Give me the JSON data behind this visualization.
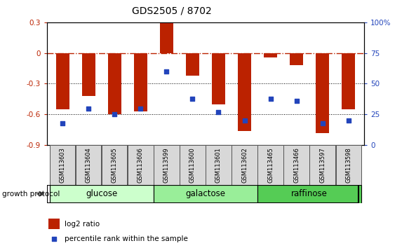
{
  "title": "GDS2505 / 8702",
  "samples": [
    "GSM113603",
    "GSM113604",
    "GSM113605",
    "GSM113606",
    "GSM113599",
    "GSM113600",
    "GSM113601",
    "GSM113602",
    "GSM113465",
    "GSM113466",
    "GSM113597",
    "GSM113598"
  ],
  "log2_ratio": [
    -0.55,
    -0.42,
    -0.6,
    -0.57,
    0.29,
    -0.22,
    -0.5,
    -0.76,
    -0.04,
    -0.12,
    -0.78,
    -0.55
  ],
  "percentile_rank": [
    18,
    30,
    25,
    30,
    60,
    38,
    27,
    20,
    38,
    36,
    18,
    20
  ],
  "groups": [
    {
      "label": "glucose",
      "start": 0,
      "end": 4,
      "color": "#ccffcc"
    },
    {
      "label": "galactose",
      "start": 4,
      "end": 8,
      "color": "#99ee99"
    },
    {
      "label": "raffinose",
      "start": 8,
      "end": 12,
      "color": "#55cc55"
    }
  ],
  "ylim_left": [
    -0.9,
    0.3
  ],
  "ylim_right": [
    0,
    100
  ],
  "yticks_left": [
    -0.9,
    -0.6,
    -0.3,
    0.0,
    0.3
  ],
  "ytick_labels_left": [
    "-0.9",
    "-0.6",
    "-0.3",
    "0",
    "0.3"
  ],
  "yticks_right": [
    0,
    25,
    50,
    75,
    100
  ],
  "ytick_labels_right": [
    "0",
    "25",
    "50",
    "75",
    "100%"
  ],
  "bar_color": "#bb2200",
  "dot_color": "#2244bb",
  "hline_color": "#bb2200",
  "hline_y": 0.0,
  "dotted_lines": [
    -0.3,
    -0.6
  ],
  "legend_log2": "log2 ratio",
  "legend_pct": "percentile rank within the sample",
  "growth_label": "growth protocol",
  "bar_width": 0.5,
  "title_fontsize": 10,
  "tick_fontsize": 7.5,
  "sample_fontsize": 6,
  "group_fontsize": 8.5,
  "legend_fontsize": 7.5
}
